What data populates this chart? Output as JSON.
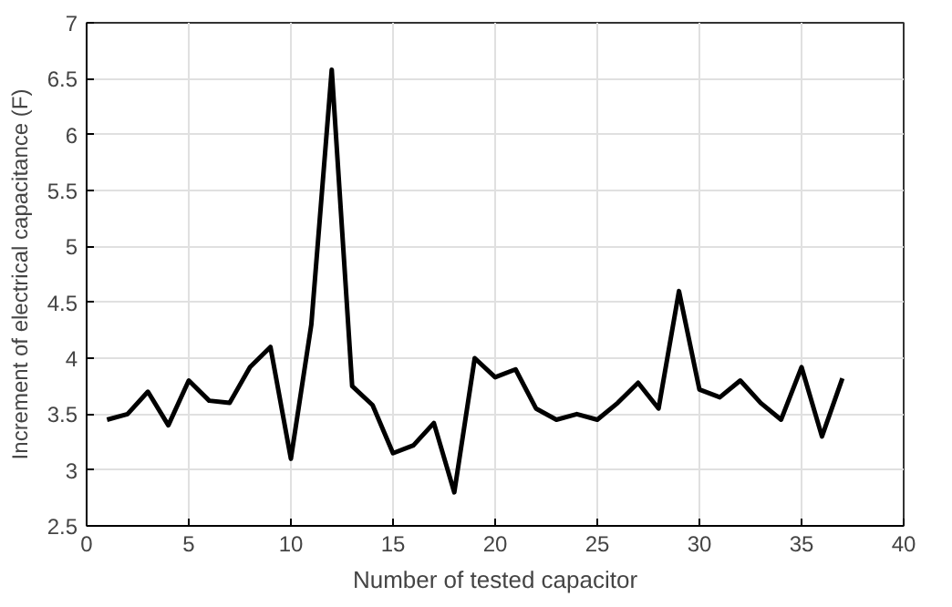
{
  "chart_data": {
    "type": "line",
    "xlabel": "Number of tested capacitor",
    "ylabel": "Increment of electrical capacitance (F)",
    "x": [
      1,
      2,
      3,
      4,
      5,
      6,
      7,
      8,
      9,
      10,
      11,
      12,
      13,
      14,
      15,
      16,
      17,
      18,
      19,
      20,
      21,
      22,
      23,
      24,
      25,
      26,
      27,
      28,
      29,
      30,
      31,
      32,
      33,
      34,
      35,
      36,
      37
    ],
    "series": [
      {
        "color": "#000000",
        "values": [
          3.45,
          3.5,
          3.7,
          3.4,
          3.8,
          3.62,
          3.6,
          3.92,
          4.1,
          3.1,
          4.3,
          6.58,
          3.75,
          3.58,
          3.15,
          3.22,
          3.42,
          2.8,
          4.0,
          3.83,
          3.9,
          3.55,
          3.45,
          3.5,
          3.45,
          3.6,
          3.78,
          3.55,
          4.6,
          3.72,
          3.65,
          3.8,
          3.6,
          3.45,
          3.92,
          3.3,
          3.82
        ]
      }
    ],
    "xlim": [
      0,
      40
    ],
    "ylim": [
      2.5,
      7
    ],
    "xticks": [
      0,
      5,
      10,
      15,
      20,
      25,
      30,
      35,
      40
    ],
    "yticks": [
      2.5,
      3,
      3.5,
      4,
      4.5,
      5,
      5.5,
      6,
      6.5,
      7
    ],
    "grid": true,
    "marker": "none",
    "line_style": "solid"
  }
}
